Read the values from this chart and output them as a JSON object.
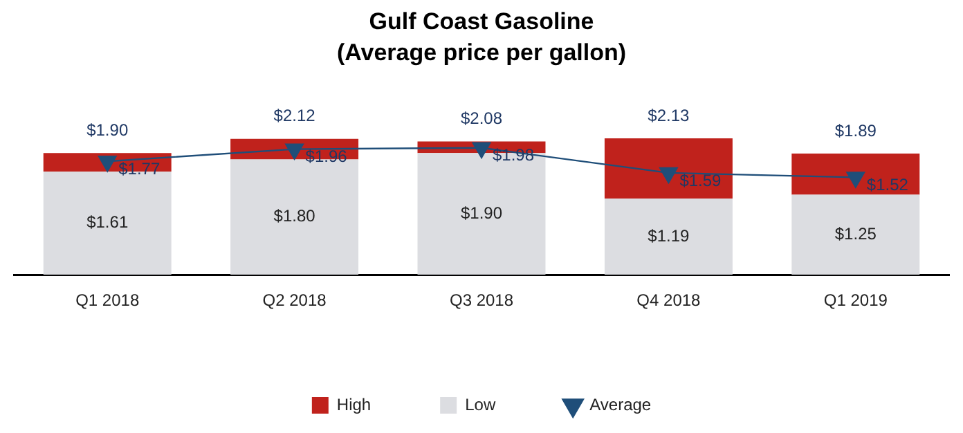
{
  "chart_data": {
    "type": "bar",
    "title": "Gulf Coast Gasoline",
    "subtitle": "(Average price per gallon)",
    "categories": [
      "Q1 2018",
      "Q2 2018",
      "Q3 2018",
      "Q4 2018",
      "Q1 2019"
    ],
    "stacked": true,
    "series": [
      {
        "name": "Low",
        "color": "#dcdde1",
        "values": [
          1.61,
          1.8,
          1.9,
          1.19,
          1.25
        ],
        "value_labels": [
          "$1.61",
          "$1.80",
          "$1.90",
          "$1.19",
          "$1.25"
        ]
      },
      {
        "name": "High",
        "color": "#c0221c",
        "values": [
          0.29,
          0.32,
          0.18,
          0.94,
          0.64
        ]
      },
      {
        "name": "Average",
        "type": "line",
        "color": "#1f4e79",
        "marker": "triangle",
        "values": [
          1.77,
          1.96,
          1.98,
          1.59,
          1.52
        ],
        "value_labels": [
          "$1.77",
          "$1.96",
          "$1.98",
          "$1.59",
          "$1.52"
        ]
      }
    ],
    "totals": [
      "$1.90",
      "$2.12",
      "$2.08",
      "$2.13",
      "$1.89"
    ],
    "tick_labels": "x",
    "grid": false,
    "legend": "bottom"
  }
}
